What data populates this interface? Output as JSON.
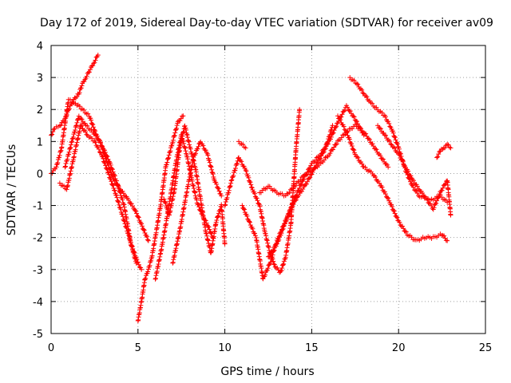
{
  "chart_data": {
    "type": "scatter",
    "title": "Day 172 of 2019, Sidereal Day-to-day VTEC variation (SDTVAR) for receiver av09",
    "xlabel": "GPS time / hours",
    "ylabel": "SDTVAR / TECUs",
    "xlim": [
      0,
      25
    ],
    "ylim": [
      -5,
      4
    ],
    "xticks": [
      "0",
      "5",
      "10",
      "15",
      "20",
      "25"
    ],
    "yticks": [
      "-5",
      "-4",
      "-3",
      "-2",
      "-1",
      "0",
      "1",
      "2",
      "3",
      "4"
    ],
    "grid": true,
    "marker": "+",
    "color": "#ff0000",
    "series": [
      {
        "name": "trace-1",
        "x": [
          0.0,
          0.2,
          0.5,
          0.8,
          1.0,
          1.3,
          1.6,
          1.8,
          2.0,
          2.3,
          2.5,
          2.7
        ],
        "y": [
          1.2,
          1.4,
          1.5,
          1.7,
          2.0,
          2.3,
          2.5,
          2.8,
          3.0,
          3.3,
          3.5,
          3.7
        ]
      },
      {
        "name": "trace-2",
        "x": [
          0.0,
          0.3,
          0.6,
          1.0,
          1.4,
          1.8,
          2.2,
          2.6,
          3.0,
          3.4,
          3.8,
          4.2,
          4.6,
          5.0,
          5.2
        ],
        "y": [
          0.0,
          0.2,
          0.8,
          2.3,
          2.2,
          2.0,
          1.8,
          1.2,
          0.8,
          0.3,
          -0.3,
          -1.0,
          -2.2,
          -2.8,
          -3.0
        ]
      },
      {
        "name": "trace-3",
        "x": [
          0.5,
          0.9,
          1.3,
          1.7,
          2.1,
          2.5,
          2.9,
          3.3,
          3.7,
          4.1,
          4.5,
          4.9
        ],
        "y": [
          -0.3,
          -0.5,
          0.5,
          1.5,
          1.2,
          1.0,
          0.6,
          0.0,
          -0.6,
          -1.3,
          -2.0,
          -2.8
        ]
      },
      {
        "name": "trace-4",
        "x": [
          0.8,
          1.2,
          1.6,
          2.0,
          2.4,
          2.8,
          3.2,
          3.6,
          4.0,
          4.4,
          4.8,
          5.2,
          5.6
        ],
        "y": [
          0.2,
          1.0,
          1.8,
          1.5,
          1.3,
          1.0,
          0.4,
          -0.2,
          -0.5,
          -0.8,
          -1.1,
          -1.6,
          -2.1
        ]
      },
      {
        "name": "trace-5",
        "x": [
          5.0,
          5.2,
          5.4,
          5.6,
          5.8,
          6.0,
          6.3,
          6.6,
          7.0,
          7.3,
          7.6
        ],
        "y": [
          -4.6,
          -4.0,
          -3.3,
          -3.0,
          -2.6,
          -2.0,
          -1.0,
          0.2,
          1.0,
          1.6,
          1.8
        ]
      },
      {
        "name": "trace-6",
        "x": [
          6.0,
          6.3,
          6.6,
          6.9,
          7.2,
          7.5,
          7.8,
          8.1,
          8.4,
          8.7,
          9.0,
          9.3
        ],
        "y": [
          -3.3,
          -2.5,
          -1.6,
          -0.6,
          0.4,
          1.2,
          0.6,
          -0.2,
          -0.9,
          -1.3,
          -1.6,
          -2.0
        ]
      },
      {
        "name": "trace-7",
        "x": [
          6.5,
          6.8,
          7.1,
          7.4,
          7.7,
          8.0,
          8.3,
          8.6,
          8.9,
          9.2,
          9.5,
          9.8,
          10.0
        ],
        "y": [
          -0.8,
          -1.3,
          -0.5,
          0.8,
          1.5,
          0.8,
          0.2,
          -0.8,
          -1.8,
          -2.5,
          -1.5,
          -1.0,
          -2.2
        ]
      },
      {
        "name": "trace-8",
        "x": [
          7.0,
          7.4,
          7.8,
          8.2,
          8.6,
          9.0,
          9.4,
          9.8
        ],
        "y": [
          -2.8,
          -1.8,
          -0.6,
          0.5,
          1.0,
          0.6,
          -0.2,
          -0.7
        ]
      },
      {
        "name": "trace-9",
        "x": [
          10.0,
          10.4,
          10.8,
          11.2,
          11.6,
          12.0,
          12.3,
          12.6,
          12.9,
          13.2,
          13.5,
          13.8,
          14.1,
          14.3
        ],
        "y": [
          -1.0,
          -0.2,
          0.5,
          0.1,
          -0.5,
          -1.0,
          -1.8,
          -2.5,
          -2.9,
          -3.1,
          -2.6,
          -1.6,
          0.8,
          2.0
        ]
      },
      {
        "name": "trace-10",
        "x": [
          11.0,
          11.4,
          11.8,
          12.2,
          12.6,
          13.0,
          13.4,
          13.8,
          14.2,
          14.6,
          15.0,
          15.4,
          15.8,
          16.2
        ],
        "y": [
          -1.0,
          -1.5,
          -2.0,
          -3.3,
          -2.8,
          -2.1,
          -1.6,
          -1.1,
          -0.7,
          -0.4,
          0.0,
          0.4,
          0.8,
          1.5
        ]
      },
      {
        "name": "trace-11",
        "x": [
          12.0,
          12.5,
          13.0,
          13.5,
          14.0,
          14.5,
          15.0,
          15.5,
          16.0,
          16.5,
          17.0,
          17.5,
          18.0,
          18.5,
          19.0,
          19.4
        ],
        "y": [
          -0.6,
          -0.4,
          -0.6,
          -0.7,
          -0.4,
          -0.1,
          0.1,
          0.3,
          0.6,
          1.0,
          1.3,
          1.5,
          1.3,
          0.9,
          0.5,
          0.2
        ]
      },
      {
        "name": "trace-12",
        "x": [
          12.5,
          13.0,
          13.5,
          14.0,
          14.5,
          15.0,
          15.5,
          16.0,
          16.5,
          17.0,
          17.5,
          18.0
        ],
        "y": [
          -2.6,
          -2.2,
          -1.5,
          -0.8,
          -0.2,
          0.3,
          0.6,
          1.0,
          1.6,
          2.1,
          1.7,
          1.2
        ]
      },
      {
        "name": "trace-13",
        "x": [
          10.8,
          11.2
        ],
        "y": [
          1.0,
          0.8
        ]
      },
      {
        "name": "trace-14",
        "x": [
          17.2,
          17.6,
          18.0,
          18.4,
          18.8,
          19.2,
          19.6,
          20.0,
          20.4,
          20.8,
          21.2,
          21.6,
          22.0,
          22.4,
          22.8
        ],
        "y": [
          3.0,
          2.8,
          2.5,
          2.2,
          2.0,
          1.8,
          1.4,
          0.8,
          0.1,
          -0.4,
          -0.7,
          -0.8,
          -0.8,
          -0.7,
          -0.9
        ]
      },
      {
        "name": "trace-15",
        "x": [
          16.5,
          17.0,
          17.5,
          18.0,
          18.5,
          19.0,
          19.5,
          20.0,
          20.5,
          21.0,
          21.5,
          22.0,
          22.5,
          22.8
        ],
        "y": [
          1.8,
          1.3,
          0.6,
          0.2,
          0.0,
          -0.4,
          -0.9,
          -1.5,
          -1.9,
          -2.1,
          -2.0,
          -2.0,
          -1.9,
          -2.1
        ]
      },
      {
        "name": "trace-16",
        "x": [
          18.8,
          19.2,
          19.6,
          20.0,
          20.4,
          20.8,
          21.2,
          21.6,
          22.0,
          22.4,
          22.8,
          23.0
        ],
        "y": [
          1.5,
          1.2,
          0.9,
          0.6,
          0.2,
          -0.2,
          -0.5,
          -0.8,
          -1.1,
          -0.6,
          -0.2,
          -1.3
        ]
      },
      {
        "name": "trace-17",
        "x": [
          22.2,
          22.4,
          22.6,
          22.8,
          23.0
        ],
        "y": [
          0.5,
          0.7,
          0.8,
          0.9,
          0.8
        ]
      }
    ]
  }
}
